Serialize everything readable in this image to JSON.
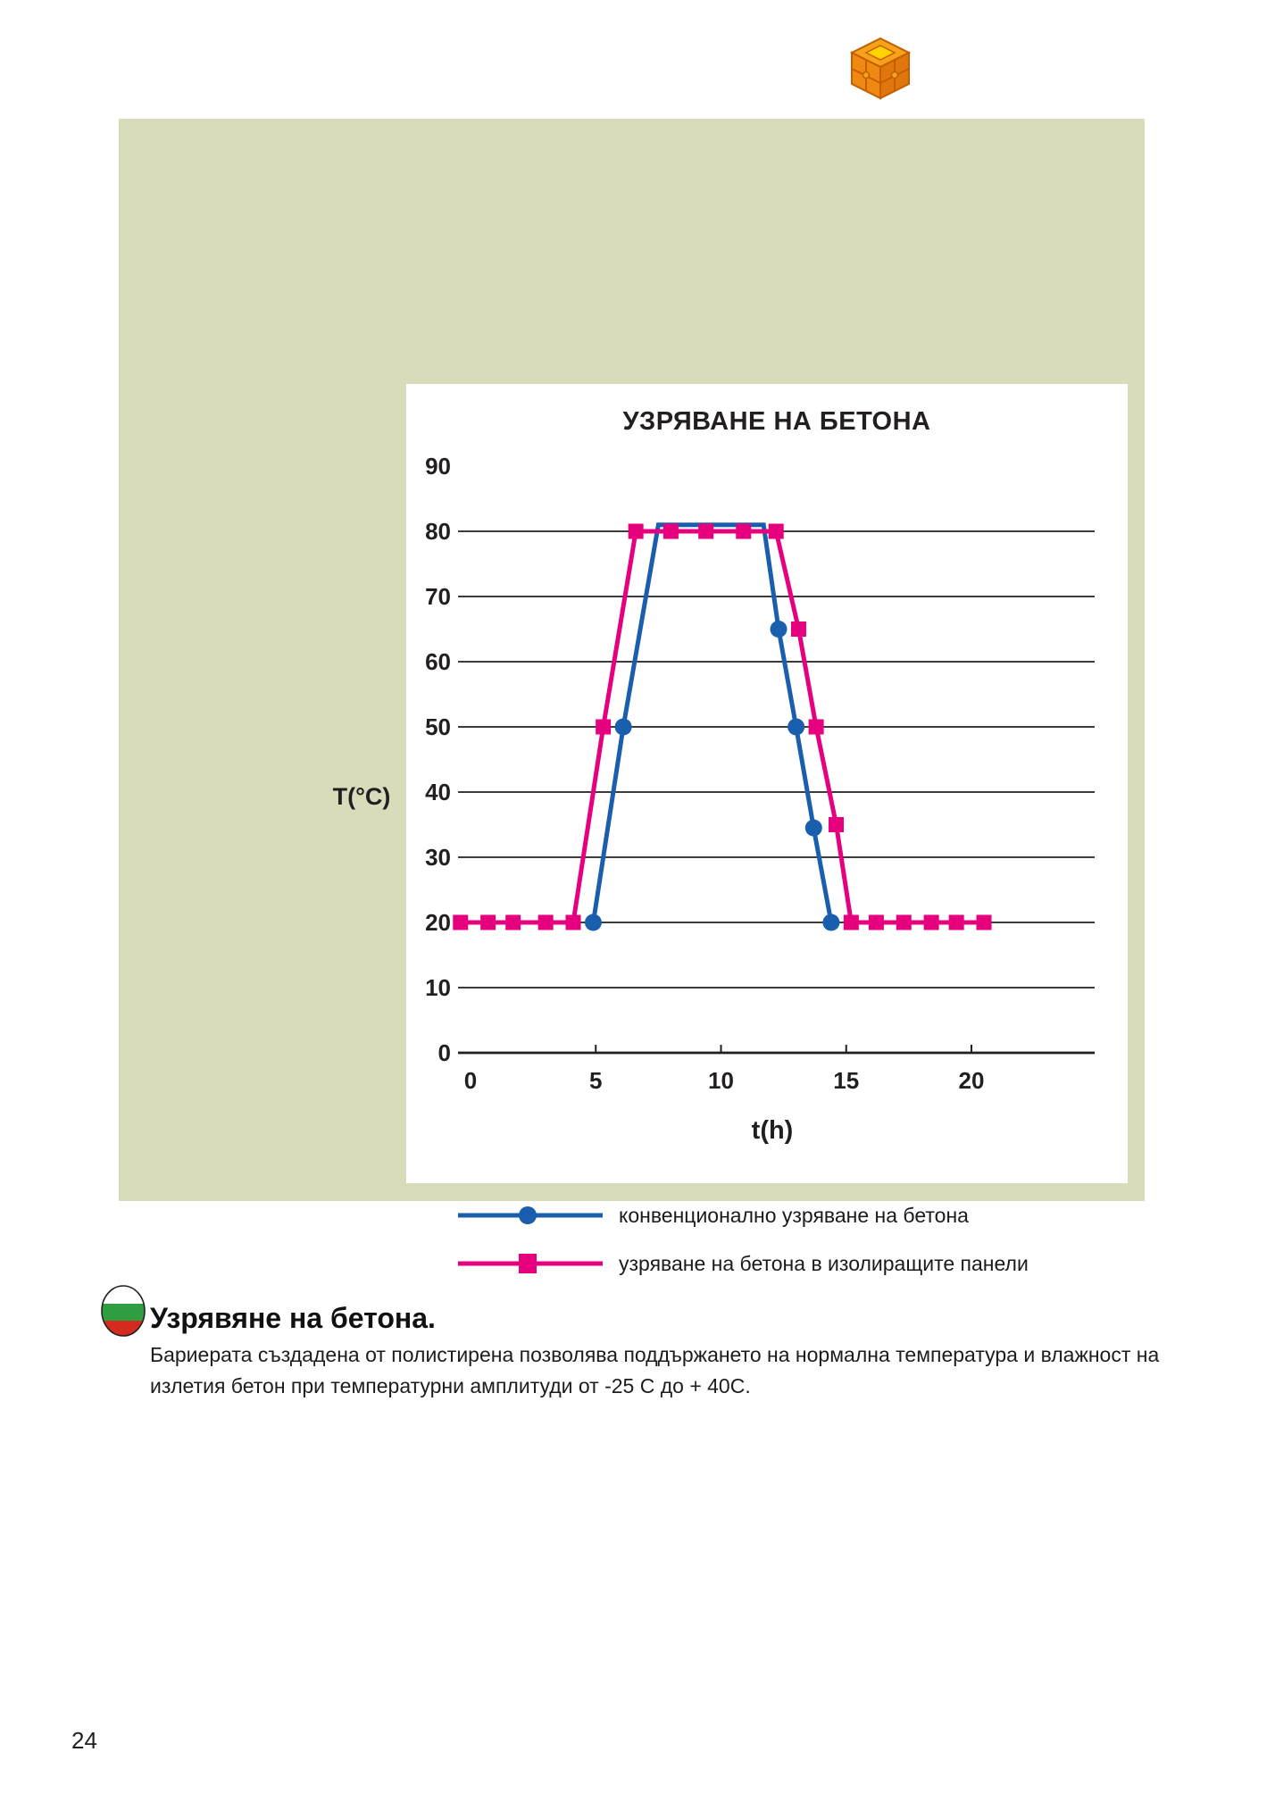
{
  "page": {
    "number": "24"
  },
  "colors": {
    "panel_background": "#d9dcba",
    "series_conventional_blue": "#1a5fad",
    "series_panels_magenta": "#e6007e",
    "grid_line": "#231f20",
    "logo_orange": "#ef8912",
    "logo_yellow": "#ffd300",
    "flag_white": "#ffffff",
    "flag_green": "#2f9e41",
    "flag_red": "#d52b1e"
  },
  "chart_data": {
    "type": "line",
    "title": "УЗРЯВАНЕ НА БЕТОНА",
    "xlabel": "t(h)",
    "ylabel": "T(°C)",
    "x_ticks": [
      0,
      5,
      10,
      15,
      20
    ],
    "y_ticks": [
      0,
      10,
      20,
      30,
      40,
      50,
      60,
      70,
      80,
      90
    ],
    "xlim": [
      -0.5,
      25.5
    ],
    "ylim": [
      0,
      92
    ],
    "grid": "horizontal-only, no line at 90",
    "legend_position": "below chart on green panel",
    "series": [
      {
        "name": "конвенционално узряване на бетона",
        "color": "#1a5fad",
        "marker": "circle",
        "line": [
          [
            4.6,
            20
          ],
          [
            4.9,
            20
          ],
          [
            6.1,
            50
          ],
          [
            7.5,
            81
          ],
          [
            11.7,
            81
          ],
          [
            12.3,
            65
          ],
          [
            13.0,
            50
          ],
          [
            13.7,
            34.5
          ],
          [
            14.4,
            20
          ]
        ],
        "markers": [
          [
            4.9,
            20
          ],
          [
            6.1,
            50
          ],
          [
            12.3,
            65
          ],
          [
            13.0,
            50
          ],
          [
            13.7,
            34.5
          ],
          [
            14.4,
            20
          ]
        ]
      },
      {
        "name": "узряване на бетона в изолиращите панели",
        "color": "#e6007e",
        "marker": "square",
        "line": [
          [
            -0.5,
            20
          ],
          [
            4.1,
            20
          ],
          [
            5.3,
            50
          ],
          [
            6.6,
            80
          ],
          [
            12.2,
            80
          ],
          [
            13.1,
            65
          ],
          [
            13.8,
            50
          ],
          [
            14.6,
            35
          ],
          [
            15.2,
            20
          ],
          [
            20.8,
            20
          ]
        ],
        "markers": [
          [
            -0.4,
            20
          ],
          [
            0.7,
            20
          ],
          [
            1.7,
            20
          ],
          [
            3.0,
            20
          ],
          [
            4.1,
            20
          ],
          [
            5.3,
            50
          ],
          [
            6.6,
            80
          ],
          [
            8.0,
            80
          ],
          [
            9.4,
            80
          ],
          [
            10.9,
            80
          ],
          [
            12.2,
            80
          ],
          [
            13.1,
            65
          ],
          [
            13.8,
            50
          ],
          [
            14.6,
            35
          ],
          [
            15.2,
            20
          ],
          [
            16.2,
            20
          ],
          [
            17.3,
            20
          ],
          [
            18.4,
            20
          ],
          [
            19.4,
            20
          ],
          [
            20.5,
            20
          ]
        ]
      }
    ]
  },
  "section": {
    "heading": "Узрявяне на бетона.",
    "body_line1": "Бариерата създадена от полистирена позволява поддържането на нормална температура и влажност на",
    "body_line2": "излетия бетон при температурни амплитуди от -25 С до + 40С."
  }
}
